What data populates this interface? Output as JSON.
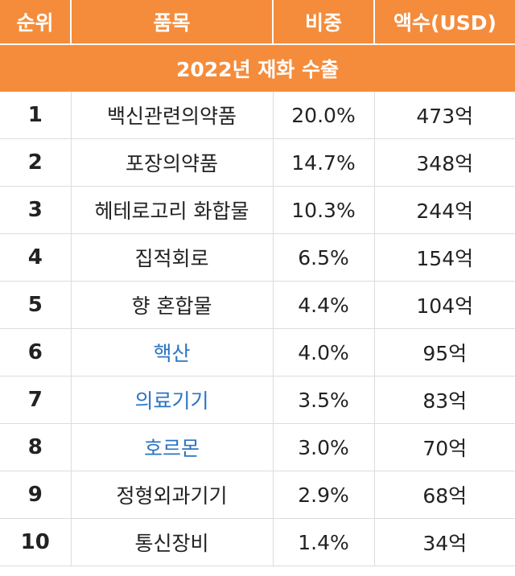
{
  "headers": {
    "rank": "순위",
    "item": "품목",
    "share": "비중",
    "amount": "액수(USD)"
  },
  "section_title": "2022년 재화 수출",
  "rows": [
    {
      "rank": "1",
      "item": "백신관련의약품",
      "share": "20.0%",
      "amount": "473억",
      "linked": false
    },
    {
      "rank": "2",
      "item": "포장의약품",
      "share": "14.7%",
      "amount": "348억",
      "linked": false
    },
    {
      "rank": "3",
      "item": "헤테로고리 화합물",
      "share": "10.3%",
      "amount": "244억",
      "linked": false
    },
    {
      "rank": "4",
      "item": "집적회로",
      "share": "6.5%",
      "amount": "154억",
      "linked": false
    },
    {
      "rank": "5",
      "item": "향 혼합물",
      "share": "4.4%",
      "amount": "104억",
      "linked": false
    },
    {
      "rank": "6",
      "item": "핵산",
      "share": "4.0%",
      "amount": "95억",
      "linked": true
    },
    {
      "rank": "7",
      "item": "의료기기",
      "share": "3.5%",
      "amount": "83억",
      "linked": true
    },
    {
      "rank": "8",
      "item": "호르몬",
      "share": "3.0%",
      "amount": "70억",
      "linked": true
    },
    {
      "rank": "9",
      "item": "정형외과기기",
      "share": "2.9%",
      "amount": "68억",
      "linked": false
    },
    {
      "rank": "10",
      "item": "통신장비",
      "share": "1.4%",
      "amount": "34억",
      "linked": false
    }
  ],
  "colors": {
    "header_bg": "#f58c3b",
    "header_text": "#ffffff",
    "link": "#2b74c4",
    "text": "#222222",
    "grid": "#dcdcdc"
  }
}
